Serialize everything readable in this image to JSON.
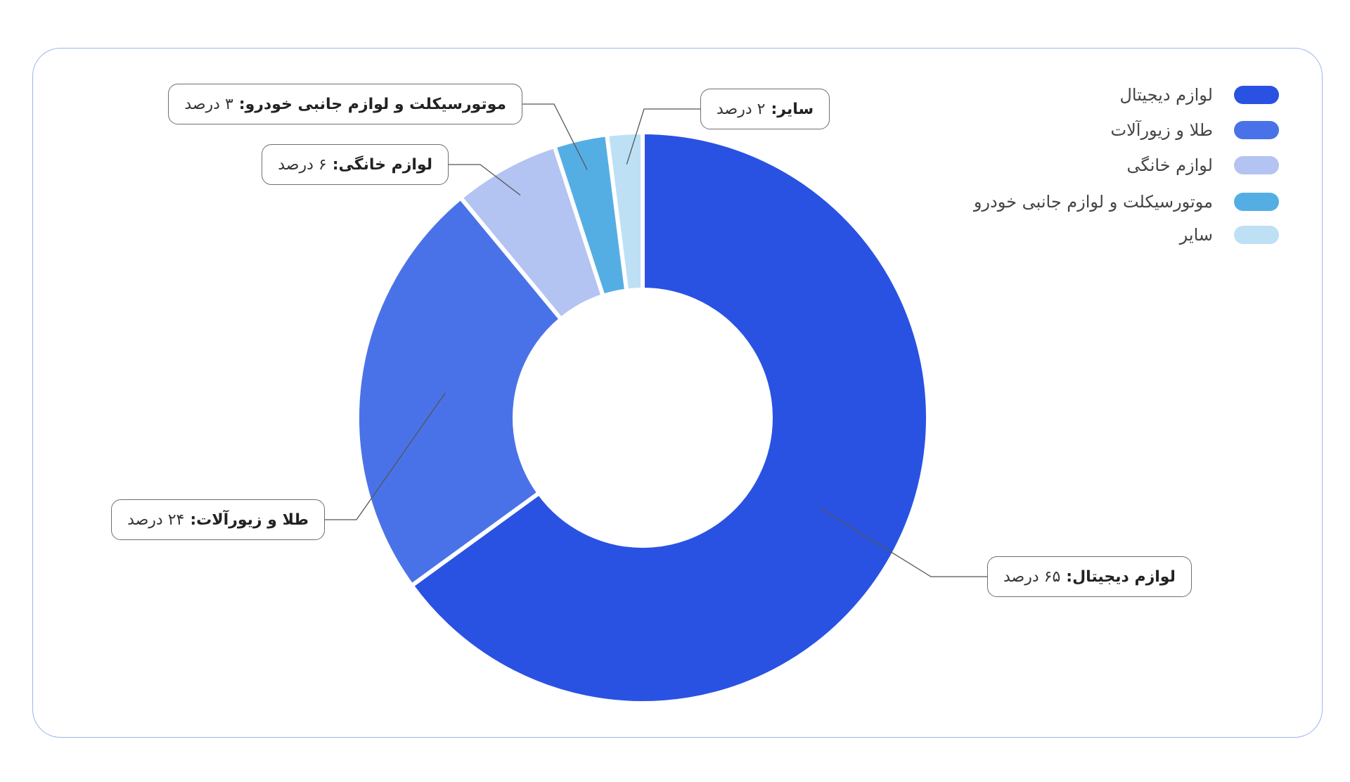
{
  "chart_data": {
    "type": "pie",
    "categories": [
      "لوازم دیجیتال",
      "طلا و زیورآلات",
      "لوازم خانگی",
      "موتورسیکلت و لوازم جانبی خودرو",
      "سایر"
    ],
    "callout_labels": [
      "لوازم دیجیتال:",
      "طلا و زیورآلات:",
      "لوازم خانگی:",
      "موتورسیکلت و لوازم جانبی خودرو:",
      "سایر:"
    ],
    "values": [
      65,
      24,
      6,
      3,
      2
    ],
    "value_labels": [
      "۶۵ درصد",
      "۲۴ درصد",
      "۶ درصد",
      "۳ درصد",
      "۲ درصد"
    ],
    "colors": [
      "#2952e3",
      "#4a72e8",
      "#b3c3f2",
      "#55aee3",
      "#bde0f5"
    ],
    "donut": true,
    "legend": "top-right"
  }
}
